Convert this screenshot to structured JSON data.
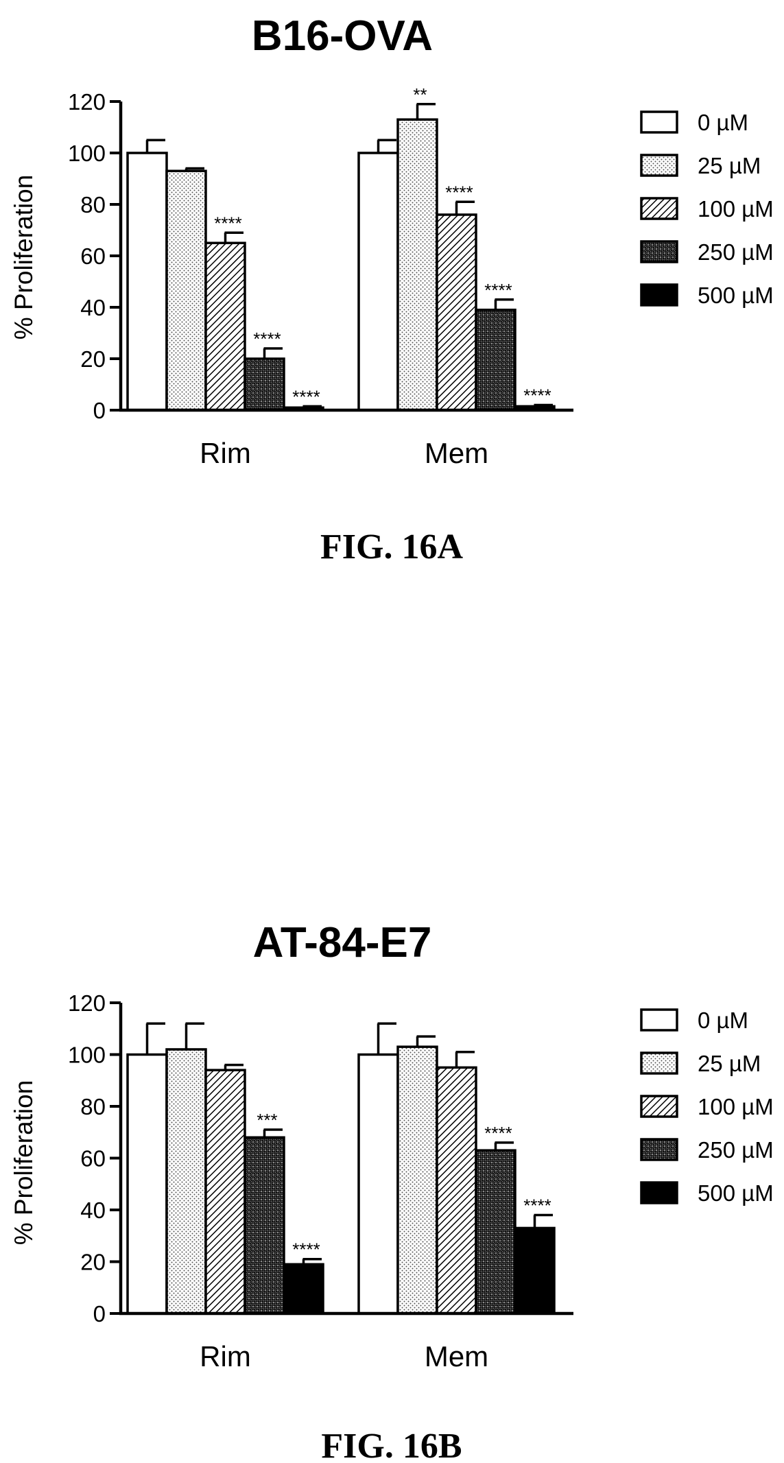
{
  "chart_data": [
    {
      "type": "bar",
      "title": "B16-OVA",
      "ylabel": "% Proliferation",
      "xlabel": "",
      "ylim": [
        0,
        120
      ],
      "yticks": [
        "0",
        "20",
        "40",
        "60",
        "80",
        "100",
        "120"
      ],
      "categories": [
        "Rim",
        "Mem"
      ],
      "legend_position": "right",
      "caption": "FIG. 16A",
      "series": [
        {
          "name": "0 µM",
          "pattern": "white",
          "values": [
            100,
            100
          ],
          "errors": [
            5,
            5
          ],
          "significance": [
            "",
            ""
          ]
        },
        {
          "name": "25 µM",
          "pattern": "dots",
          "values": [
            93,
            113
          ],
          "errors": [
            1,
            6
          ],
          "significance": [
            "",
            "**"
          ]
        },
        {
          "name": "100 µM",
          "pattern": "hatch",
          "values": [
            65,
            76
          ],
          "errors": [
            4,
            5
          ],
          "significance": [
            "****",
            "****"
          ]
        },
        {
          "name": "250 µM",
          "pattern": "crosshatch",
          "values": [
            20,
            39
          ],
          "errors": [
            4,
            4
          ],
          "significance": [
            "****",
            "****"
          ]
        },
        {
          "name": "500 µM",
          "pattern": "black",
          "values": [
            1,
            1.5
          ],
          "errors": [
            0.5,
            0.5
          ],
          "significance": [
            "****",
            "****"
          ]
        }
      ]
    },
    {
      "type": "bar",
      "title": "AT-84-E7",
      "ylabel": "% Proliferation",
      "xlabel": "",
      "ylim": [
        0,
        120
      ],
      "yticks": [
        "0",
        "20",
        "40",
        "60",
        "80",
        "100",
        "120"
      ],
      "categories": [
        "Rim",
        "Mem"
      ],
      "legend_position": "right",
      "caption": "FIG. 16B",
      "series": [
        {
          "name": "0 µM",
          "pattern": "white",
          "values": [
            100,
            100
          ],
          "errors": [
            12,
            12
          ],
          "significance": [
            "",
            ""
          ]
        },
        {
          "name": "25 µM",
          "pattern": "dots",
          "values": [
            102,
            103
          ],
          "errors": [
            10,
            4
          ],
          "significance": [
            "",
            ""
          ]
        },
        {
          "name": "100 µM",
          "pattern": "hatch",
          "values": [
            94,
            95
          ],
          "errors": [
            2,
            6
          ],
          "significance": [
            "",
            ""
          ]
        },
        {
          "name": "250 µM",
          "pattern": "crosshatch",
          "values": [
            68,
            63
          ],
          "errors": [
            3,
            3
          ],
          "significance": [
            "***",
            "****"
          ]
        },
        {
          "name": "500 µM",
          "pattern": "black",
          "values": [
            19,
            33
          ],
          "errors": [
            2,
            5
          ],
          "significance": [
            "****",
            "****"
          ]
        }
      ]
    }
  ]
}
